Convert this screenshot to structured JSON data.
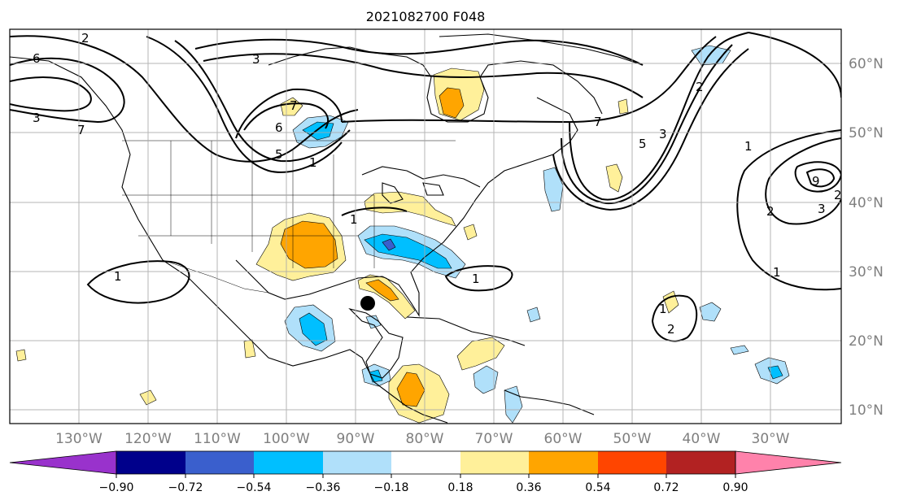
{
  "title": "2021082700 F048",
  "map": {
    "lon_labels": [
      "130°W",
      "120°W",
      "110°W",
      "100°W",
      "90°W",
      "80°W",
      "70°W",
      "60°W",
      "50°W",
      "40°W",
      "30°W"
    ],
    "lat_labels": [
      "60°N",
      "50°N",
      "40°N",
      "30°N",
      "20°N",
      "10°N"
    ],
    "contour_labels": [
      "6",
      "3",
      "2",
      "7",
      "6",
      "7",
      "5",
      "3",
      "1",
      "1",
      "2",
      "5",
      "7",
      "3",
      "1",
      "2",
      "1",
      "1",
      "1",
      "2",
      "2",
      "3",
      "9",
      "1"
    ]
  },
  "colorbar": {
    "tick_labels": [
      "−0.90",
      "−0.72",
      "−0.54",
      "−0.36",
      "−0.18",
      "0.18",
      "0.36",
      "0.54",
      "0.72",
      "0.90"
    ],
    "colors": [
      "#9932cc",
      "#00008b",
      "#3a5fcd",
      "#00bfff",
      "#b0e0fa",
      "#ffffff",
      "#fff09a",
      "#ffa500",
      "#ff4500",
      "#b22222",
      "#ff82ab"
    ],
    "extend": "both"
  },
  "style": {
    "grid_color": "#a9a9a9",
    "frame_color": "#000000",
    "coast_color": "#000000"
  }
}
